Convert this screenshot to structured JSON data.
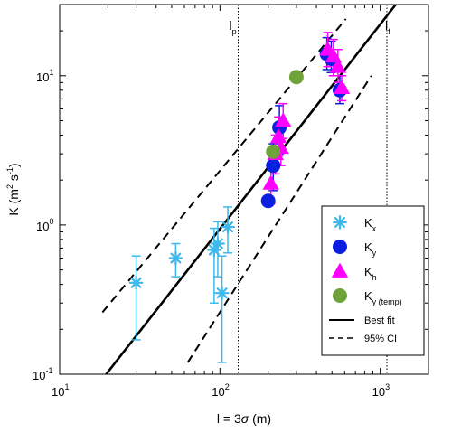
{
  "chart_data": {
    "type": "scatter",
    "xscale": "log",
    "yscale": "log",
    "xlim": [
      10,
      2000
    ],
    "ylim": [
      0.1,
      30
    ],
    "xticks": [
      {
        "value": 10,
        "base": "10",
        "exp": "1"
      },
      {
        "value": 100,
        "base": "10",
        "exp": "2"
      },
      {
        "value": 1000,
        "base": "10",
        "exp": "3"
      }
    ],
    "yticks": [
      {
        "value": 0.1,
        "base": "10",
        "exp": "-1"
      },
      {
        "value": 1,
        "base": "10",
        "exp": "0"
      },
      {
        "value": 10,
        "base": "10",
        "exp": "1"
      }
    ],
    "xlabel": {
      "main": "l = 3",
      "sigma": "σ",
      "unit": " (m)"
    },
    "ylabel": {
      "main": "K (m",
      "sup1": "2",
      "mid": " s",
      "sup2": "-1",
      "end": ")"
    },
    "vlines": [
      {
        "x": 130,
        "label_base": "l",
        "label_sub": "p"
      },
      {
        "x": 1100,
        "label_base": "l",
        "label_sub": "f"
      }
    ],
    "series": [
      {
        "name_base": "K",
        "name_sub": "x",
        "marker": "asterisk",
        "color": "#3db8ea",
        "points": [
          {
            "x": 30,
            "y": 0.41,
            "ylo": 0.17,
            "yhi": 0.62
          },
          {
            "x": 53,
            "y": 0.6,
            "ylo": 0.45,
            "yhi": 0.75
          },
          {
            "x": 92,
            "y": 0.68,
            "ylo": 0.3,
            "yhi": 0.95
          },
          {
            "x": 97,
            "y": 0.75,
            "ylo": 0.45,
            "yhi": 1.05
          },
          {
            "x": 103,
            "y": 0.35,
            "ylo": 0.12,
            "yhi": 0.62
          },
          {
            "x": 112,
            "y": 0.97,
            "ylo": 0.65,
            "yhi": 1.32
          }
        ]
      },
      {
        "name_base": "K",
        "name_sub": "y",
        "marker": "circle",
        "color": "#0a1fe0",
        "points": [
          {
            "x": 200,
            "y": 1.45
          },
          {
            "x": 215,
            "y": 2.5,
            "ylo": 1.7,
            "yhi": 3.5
          },
          {
            "x": 235,
            "y": 4.5,
            "ylo": 3.0,
            "yhi": 6.3
          },
          {
            "x": 465,
            "y": 14.0,
            "ylo": 11.0,
            "yhi": 18.0
          },
          {
            "x": 495,
            "y": 13.0,
            "ylo": 10.5,
            "yhi": 17.0
          },
          {
            "x": 560,
            "y": 8.0,
            "ylo": 6.5,
            "yhi": 10.0
          }
        ]
      },
      {
        "name_base": "K",
        "name_sub": "h",
        "marker": "triangle",
        "color": "#ff00ff",
        "points": [
          {
            "x": 208,
            "y": 1.9,
            "ylo": 1.4,
            "yhi": 2.5
          },
          {
            "x": 222,
            "y": 3.0,
            "ylo": 2.2,
            "yhi": 4.0
          },
          {
            "x": 232,
            "y": 3.9,
            "ylo": 2.9,
            "yhi": 5.3
          },
          {
            "x": 248,
            "y": 5.0,
            "ylo": 3.8,
            "yhi": 6.5
          },
          {
            "x": 240,
            "y": 3.3,
            "ylo": 2.5,
            "yhi": 4.4
          },
          {
            "x": 470,
            "y": 15.0,
            "ylo": 11.5,
            "yhi": 19.5
          },
          {
            "x": 510,
            "y": 13.5,
            "ylo": 10.0,
            "yhi": 17.5
          },
          {
            "x": 545,
            "y": 11.5,
            "ylo": 9.0,
            "yhi": 15.0
          },
          {
            "x": 575,
            "y": 8.3,
            "ylo": 6.8,
            "yhi": 10.0
          }
        ]
      },
      {
        "name_base": "K",
        "name_sub": "y (temp)",
        "marker": "circle",
        "color": "#6ea33a",
        "points": [
          {
            "x": 215,
            "y": 3.1
          },
          {
            "x": 300,
            "y": 9.8
          }
        ]
      }
    ],
    "lines": [
      {
        "name": "Best fit",
        "style": "solid",
        "points": [
          [
            19.5,
            0.1
          ],
          [
            1250,
            30
          ]
        ]
      },
      {
        "name": "95% CI",
        "style": "dashed",
        "points": [
          [
            18.5,
            0.26
          ],
          [
            610,
            24
          ]
        ]
      },
      {
        "name": "",
        "style": "dashed",
        "points": [
          [
            63,
            0.12
          ],
          [
            880,
            10
          ]
        ]
      }
    ],
    "legend": {
      "position": "bottom-right"
    }
  }
}
